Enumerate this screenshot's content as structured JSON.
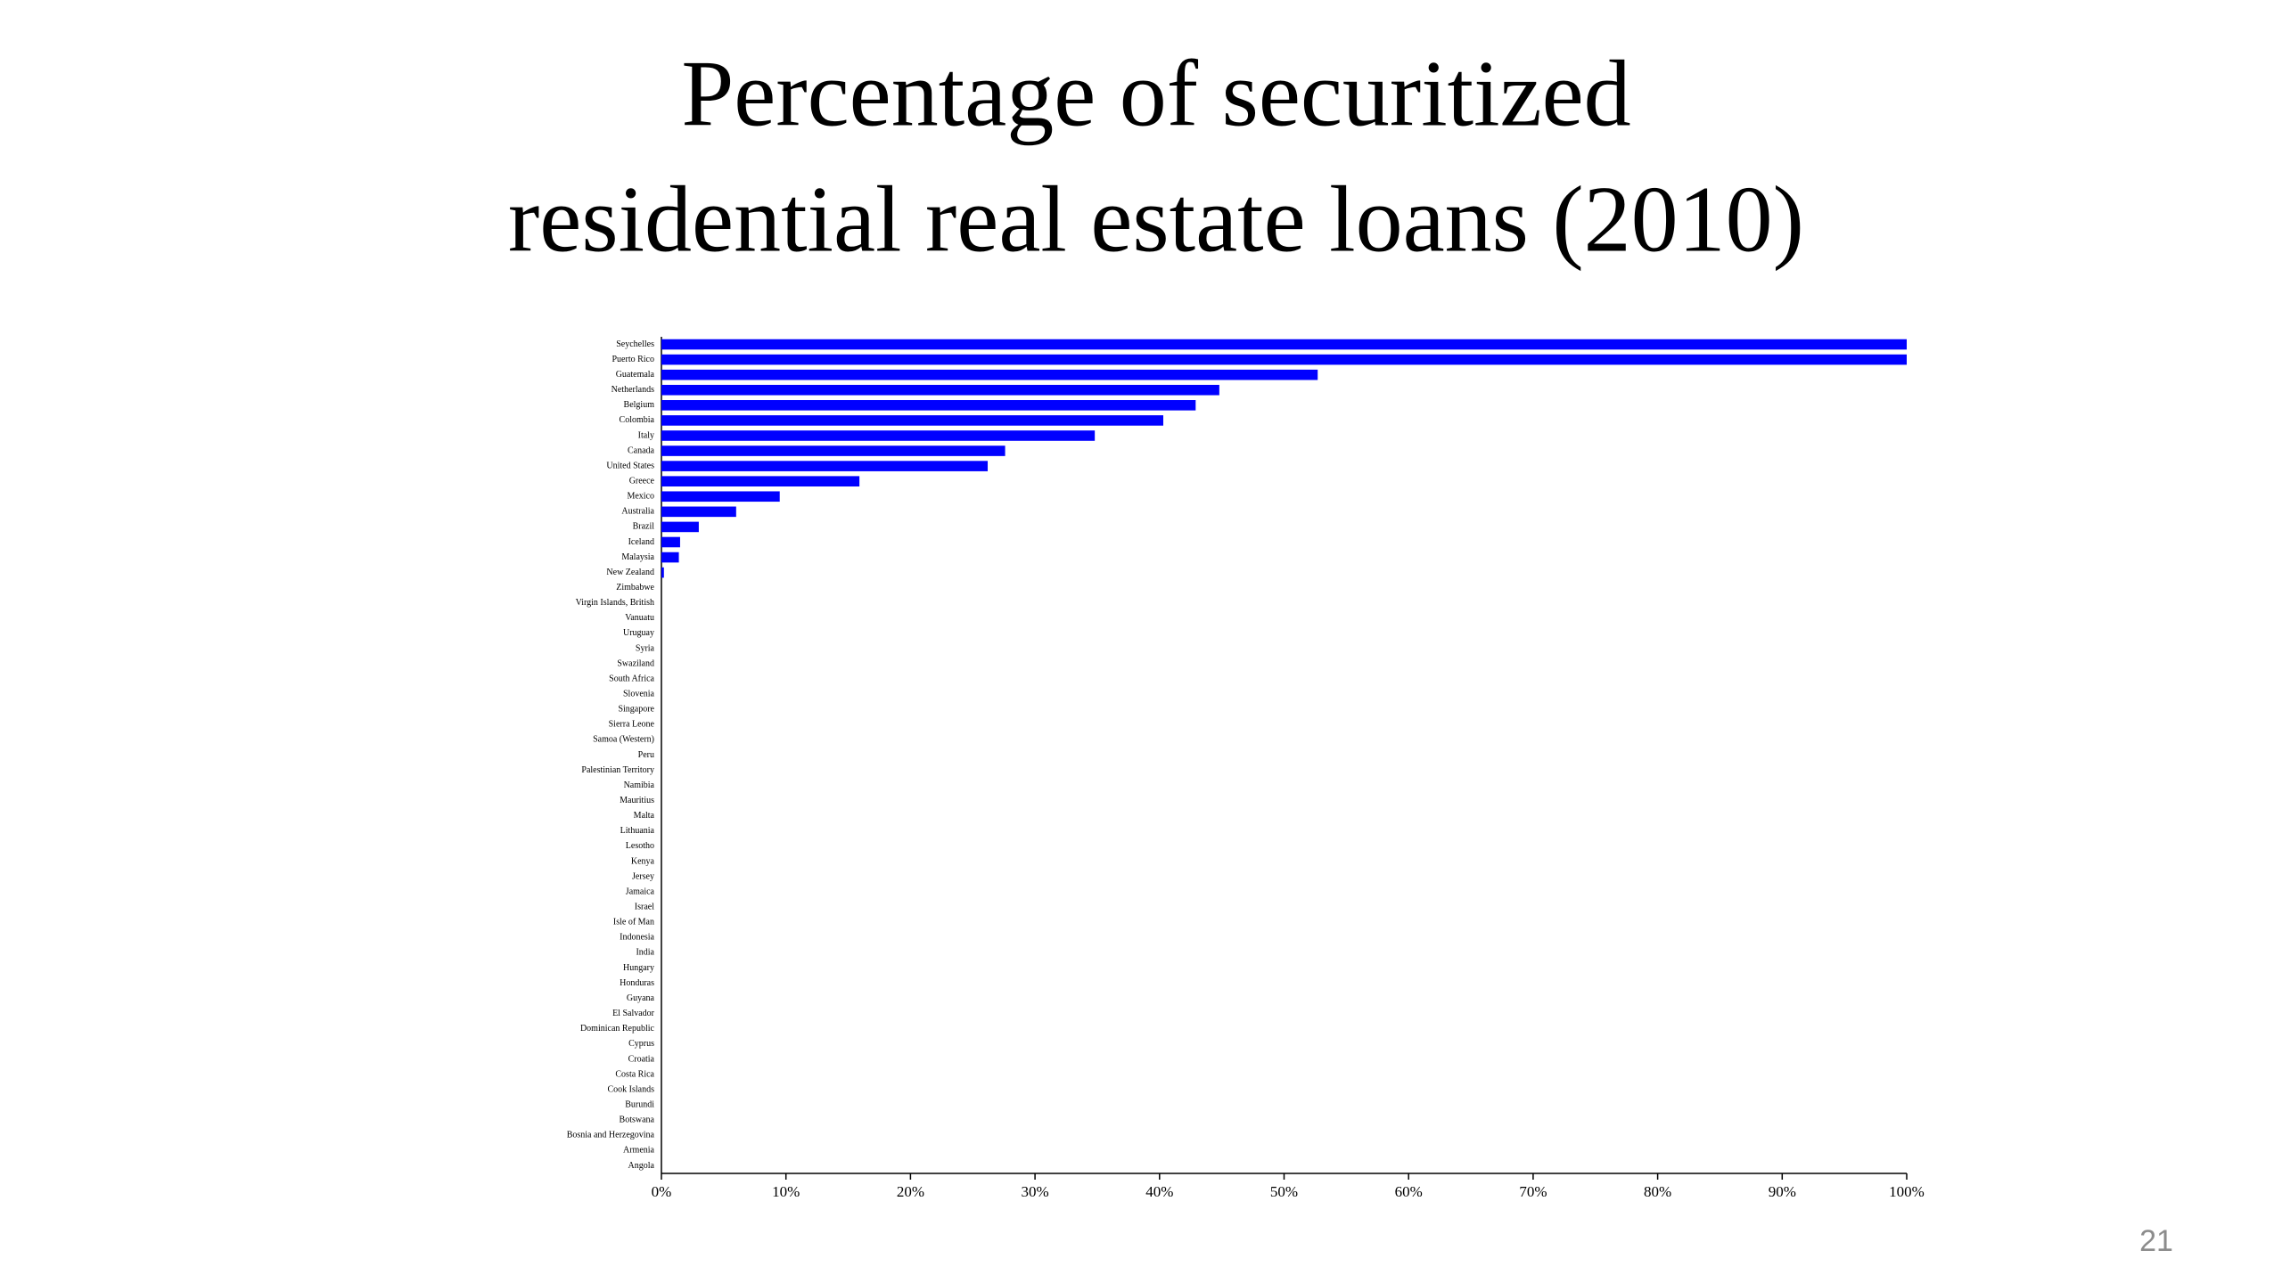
{
  "chart_data": {
    "type": "bar",
    "orientation": "horizontal",
    "title": [
      "Percentage of securitized",
      "residential real estate loans (2010)"
    ],
    "categories": [
      "Seychelles",
      "Puerto Rico",
      "Guatemala",
      "Netherlands",
      "Belgium",
      "Colombia",
      "Italy",
      "Canada",
      "United States",
      "Greece",
      "Mexico",
      "Australia",
      "Brazil",
      "Iceland",
      "Malaysia",
      "New Zealand",
      "Zimbabwe",
      "Virgin Islands, British",
      "Vanuatu",
      "Uruguay",
      "Syria",
      "Swaziland",
      "South Africa",
      "Slovenia",
      "Singapore",
      "Sierra Leone",
      "Samoa (Western)",
      "Peru",
      "Palestinian Territory",
      "Namibia",
      "Mauritius",
      "Malta",
      "Lithuania",
      "Lesotho",
      "Kenya",
      "Jersey",
      "Jamaica",
      "Israel",
      "Isle of Man",
      "Indonesia",
      "India",
      "Hungary",
      "Honduras",
      "Guyana",
      "El Salvador",
      "Dominican Republic",
      "Cyprus",
      "Croatia",
      "Costa Rica",
      "Cook Islands",
      "Burundi",
      "Botswana",
      "Bosnia and Herzegovina",
      "Armenia",
      "Angola"
    ],
    "values": [
      100,
      100,
      52.7,
      44.8,
      42.9,
      40.3,
      34.8,
      27.6,
      26.2,
      15.9,
      9.5,
      6.0,
      3.0,
      1.5,
      1.4,
      0.2,
      0,
      0,
      0,
      0,
      0,
      0,
      0,
      0,
      0,
      0,
      0,
      0,
      0,
      0,
      0,
      0,
      0,
      0,
      0,
      0,
      0,
      0,
      0,
      0,
      0,
      0,
      0,
      0,
      0,
      0,
      0,
      0,
      0,
      0,
      0,
      0,
      0,
      0,
      0
    ],
    "color": "#0000ff",
    "xlim": [
      0,
      100
    ],
    "xticks": [
      {
        "value": 0,
        "label": "0%"
      },
      {
        "value": 10,
        "label": "10%"
      },
      {
        "value": 20,
        "label": "20%"
      },
      {
        "value": 30,
        "label": "30%"
      },
      {
        "value": 40,
        "label": "40%"
      },
      {
        "value": 50,
        "label": "50%"
      },
      {
        "value": 60,
        "label": "60%"
      },
      {
        "value": 70,
        "label": "70%"
      },
      {
        "value": 80,
        "label": "80%"
      },
      {
        "value": 90,
        "label": "90%"
      },
      {
        "value": 100,
        "label": "100%"
      }
    ],
    "grid": false
  },
  "page_number": "21"
}
